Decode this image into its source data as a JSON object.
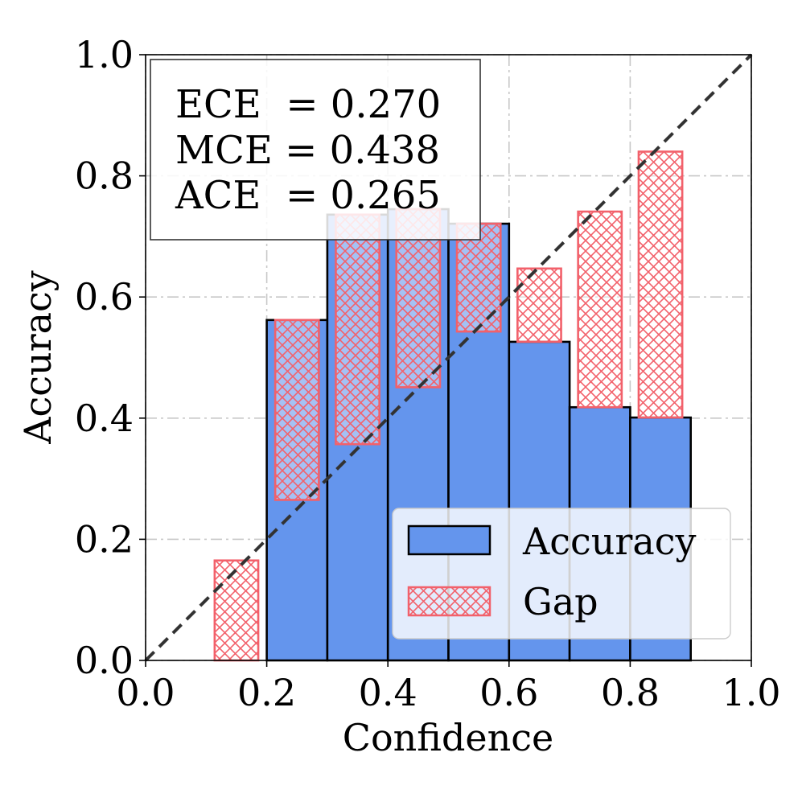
{
  "chart_data": {
    "type": "bar",
    "title": "",
    "xlabel": "Confidence",
    "ylabel": "Accuracy",
    "xlim": [
      0.0,
      1.0
    ],
    "ylim": [
      0.0,
      1.0
    ],
    "grid": true,
    "xticks": [
      "0.0",
      "0.2",
      "0.4",
      "0.6",
      "0.8",
      "1.0"
    ],
    "yticks": [
      "0.0",
      "0.2",
      "0.4",
      "0.6",
      "0.8",
      "1.0"
    ],
    "bin_width": 0.1,
    "bins": [
      {
        "center": 0.15,
        "accuracy": 0.0,
        "confidence": 0.165
      },
      {
        "center": 0.25,
        "accuracy": 0.562,
        "confidence": 0.265
      },
      {
        "center": 0.35,
        "accuracy": 0.736,
        "confidence": 0.357
      },
      {
        "center": 0.45,
        "accuracy": 0.745,
        "confidence": 0.451
      },
      {
        "center": 0.55,
        "accuracy": 0.721,
        "confidence": 0.543
      },
      {
        "center": 0.65,
        "accuracy": 0.526,
        "confidence": 0.647
      },
      {
        "center": 0.75,
        "accuracy": 0.418,
        "confidence": 0.741
      },
      {
        "center": 0.85,
        "accuracy": 0.401,
        "confidence": 0.84
      }
    ],
    "series": [
      {
        "name": "Accuracy",
        "color": "#6495ED"
      },
      {
        "name": "Gap",
        "color": "#F2616B"
      }
    ],
    "legend_position": "lower-right",
    "metrics_box": {
      "position": "top-left",
      "lines": [
        "ECE  = 0.270",
        "MCE = 0.438",
        "ACE  = 0.265"
      ]
    },
    "reference_line": "diagonal-dashed"
  }
}
